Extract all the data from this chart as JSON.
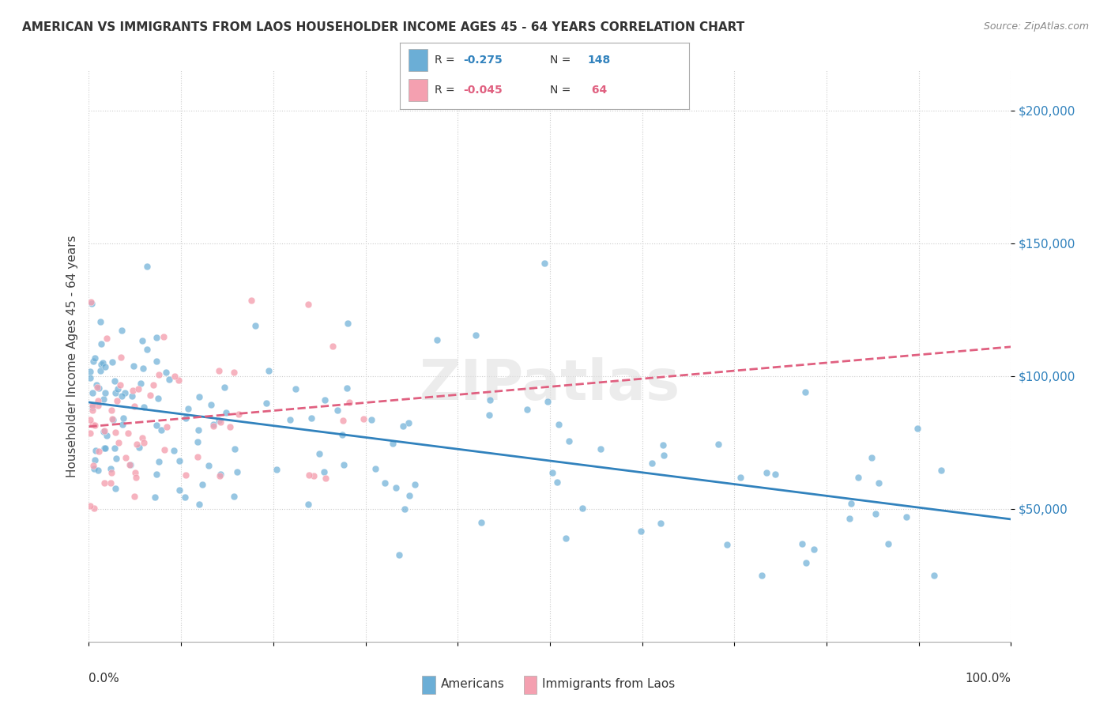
{
  "title": "AMERICAN VS IMMIGRANTS FROM LAOS HOUSEHOLDER INCOME AGES 45 - 64 YEARS CORRELATION CHART",
  "source": "Source: ZipAtlas.com",
  "ylabel": "Householder Income Ages 45 - 64 years",
  "legend_r1_prefix": "R = ",
  "legend_r1_val": "-0.275",
  "legend_r1_n_prefix": "N = ",
  "legend_r1_n_val": "148",
  "legend_r2_prefix": "R = ",
  "legend_r2_val": "-0.045",
  "legend_r2_n_prefix": "N = ",
  "legend_r2_n_val": " 64",
  "legend_label1": "Americans",
  "legend_label2": "Immigrants from Laos",
  "watermark": "ZIPatlas",
  "ytick_values": [
    50000,
    100000,
    150000,
    200000
  ],
  "color_american": "#6baed6",
  "color_laos": "#f4a0b0",
  "color_line_american": "#3182bd",
  "color_line_laos": "#e06080",
  "xlim": [
    0,
    100
  ],
  "ylim": [
    0,
    215000
  ]
}
